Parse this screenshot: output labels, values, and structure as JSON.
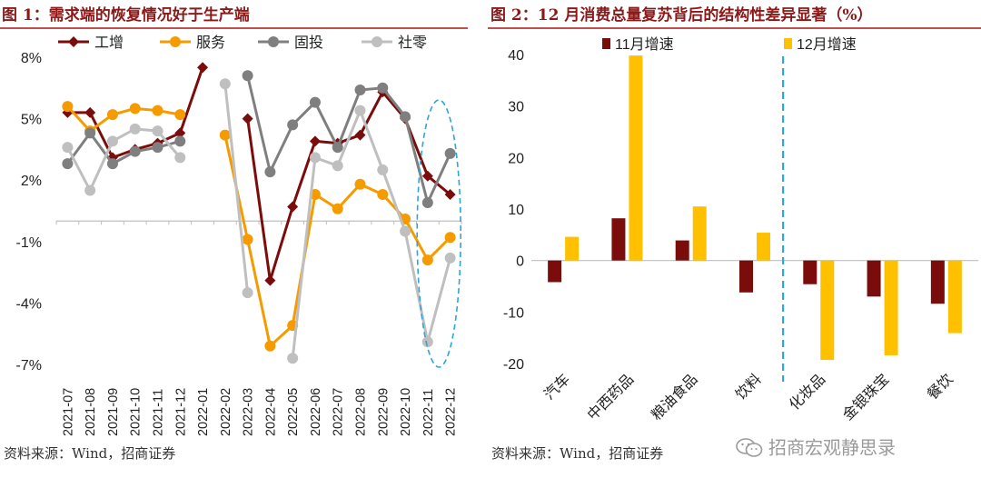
{
  "left": {
    "title": "图 1：需求端的恢复情况好于生产端",
    "source": "资料来源：Wind，招商证券",
    "chart_data": {
      "type": "line",
      "x": [
        "2021-07",
        "2021-08",
        "2021-09",
        "2021-10",
        "2021-11",
        "2021-12",
        "2022-01",
        "2022-02",
        "2022-03",
        "2022-04",
        "2022-05",
        "2022-06",
        "2022-07",
        "2022-08",
        "2022-09",
        "2022-10",
        "2022-11",
        "2022-12"
      ],
      "ylim": [
        -7,
        8
      ],
      "yticks": [
        8,
        5,
        2,
        -1,
        -4,
        -7
      ],
      "ytick_labels": [
        "8%",
        "5%",
        "2%",
        "-1%",
        "-4%",
        "-7%"
      ],
      "series": [
        {
          "name": "工增",
          "color": "#7b0c0c",
          "marker": "diamond",
          "values": [
            5.3,
            5.3,
            3.1,
            3.5,
            3.8,
            4.3,
            7.5,
            null,
            5.0,
            -2.9,
            0.7,
            3.9,
            3.8,
            4.2,
            6.3,
            5.0,
            2.2,
            1.3
          ]
        },
        {
          "name": "服务",
          "color": "#f59b00",
          "marker": "circle",
          "values": [
            5.6,
            4.4,
            5.2,
            5.5,
            5.4,
            5.2,
            null,
            4.2,
            -0.9,
            -6.1,
            -5.1,
            1.3,
            0.6,
            1.8,
            1.3,
            0.1,
            -1.9,
            -0.8
          ]
        },
        {
          "name": "固投",
          "color": "#7f7f7f",
          "marker": "circle",
          "values": [
            2.8,
            4.3,
            2.8,
            3.4,
            3.6,
            3.9,
            null,
            null,
            7.1,
            2.4,
            4.7,
            5.8,
            3.6,
            6.4,
            6.5,
            5.1,
            0.9,
            3.3
          ]
        },
        {
          "name": "社零",
          "color": "#bfbfbf",
          "marker": "circle",
          "values": [
            3.6,
            1.5,
            3.9,
            4.5,
            4.4,
            3.1,
            null,
            6.7,
            -3.5,
            null,
            -6.7,
            3.1,
            2.7,
            5.4,
            2.5,
            -0.5,
            -5.9,
            -1.8
          ]
        }
      ],
      "annotation": "dashed blue ellipse highlighting 2022-11 to 2022-12",
      "legend": "top"
    }
  },
  "right": {
    "title": "图 2：12 月消费总量复苏背后的结构性差异显著（%）",
    "source": "资料来源：Wind，招商证券",
    "chart_data": {
      "type": "bar",
      "categories": [
        "汽车",
        "中西药品",
        "粮油食品",
        "饮料",
        "化妆品",
        "金银珠宝",
        "餐饮"
      ],
      "ylim": [
        -20,
        40
      ],
      "yticks": [
        40,
        30,
        20,
        10,
        0,
        -10,
        -20
      ],
      "series": [
        {
          "name": "11月增速",
          "color": "#7b0c0c",
          "values": [
            -4.2,
            8.2,
            3.9,
            -6.2,
            -4.6,
            -7.0,
            -8.4
          ]
        },
        {
          "name": "12月增速",
          "color": "#ffc000",
          "values": [
            4.6,
            39.8,
            10.5,
            5.4,
            -19.3,
            -18.4,
            -14.1
          ]
        }
      ],
      "separator": "dashed blue vertical line between 饮料 and 化妆品",
      "legend": "top"
    }
  },
  "watermark": {
    "text": "招商宏观静思录"
  }
}
